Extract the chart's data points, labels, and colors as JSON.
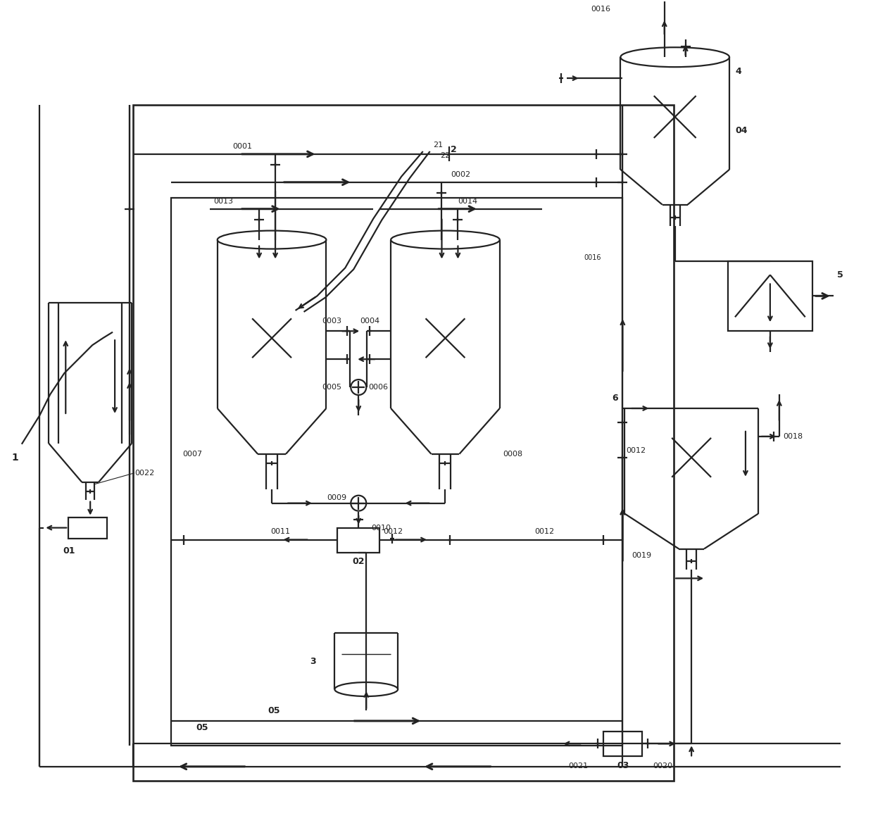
{
  "bg": "#ffffff",
  "lc": "#222222",
  "lw": 1.6,
  "fs": 8.5
}
